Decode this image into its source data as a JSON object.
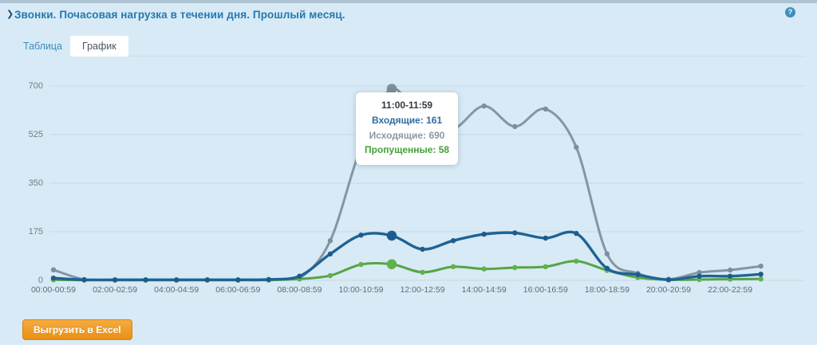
{
  "panel": {
    "title": "Звонки. Почасовая нагрузка в течении дня. Прошлый месяц.",
    "collapse_arrow": "❯",
    "help_icon": "?",
    "tabs": [
      {
        "label": "Таблица",
        "active": false
      },
      {
        "label": "График",
        "active": true
      }
    ],
    "export_button": "Выгрузить в Excel"
  },
  "chart_data": {
    "type": "line",
    "title": "Звонки. Почасовая нагрузка в течении дня. Прошлый месяц.",
    "xlabel": "",
    "ylabel": "",
    "ylim": [
      0,
      700
    ],
    "y_ticks": [
      0,
      175,
      350,
      525,
      700
    ],
    "grid": true,
    "legend_position": "none",
    "x_tick_labels": [
      "00:00-00:59",
      "02:00-02:59",
      "04:00-04:59",
      "06:00-06:59",
      "08:00-08:59",
      "10:00-10:59",
      "12:00-12:59",
      "14:00-14:59",
      "16:00-16:59",
      "18:00-18:59",
      "20:00-20:59",
      "22:00-22:59"
    ],
    "x_hours": [
      0,
      1,
      2,
      3,
      4,
      5,
      6,
      7,
      8,
      9,
      10,
      11,
      12,
      13,
      14,
      15,
      16,
      17,
      18,
      19,
      20,
      21,
      22,
      23
    ],
    "series": [
      {
        "name": "Исходящие",
        "color": "#8495a3",
        "dot_color": "#7d8e9c",
        "values": [
          38,
          3,
          1,
          1,
          1,
          1,
          1,
          2,
          8,
          143,
          480,
          690,
          565,
          545,
          628,
          554,
          617,
          479,
          95,
          25,
          4,
          28,
          37,
          51
        ]
      },
      {
        "name": "Пропущенные",
        "color": "#57a447",
        "dot_color": "#5fb24a",
        "values": [
          2,
          1,
          1,
          1,
          1,
          1,
          1,
          1,
          5,
          17,
          57,
          58,
          29,
          49,
          41,
          46,
          49,
          69,
          36,
          10,
          2,
          3,
          4,
          5
        ]
      },
      {
        "name": "Входящие",
        "color": "#1f6394",
        "dot_color": "#1d5c90",
        "values": [
          8,
          2,
          2,
          2,
          2,
          2,
          2,
          3,
          15,
          95,
          163,
          161,
          112,
          143,
          166,
          171,
          152,
          169,
          43,
          20,
          2,
          15,
          15,
          22
        ]
      }
    ],
    "highlight_index": 11,
    "tooltip": {
      "title": "11:00-11:59",
      "rows": [
        {
          "label": "Входящие",
          "value": 161,
          "color": "#2d6da3"
        },
        {
          "label": "Исходящие",
          "value": 690,
          "color": "#8b98a4"
        },
        {
          "label": "Пропущенные",
          "value": 58,
          "color": "#44a039"
        }
      ]
    }
  }
}
